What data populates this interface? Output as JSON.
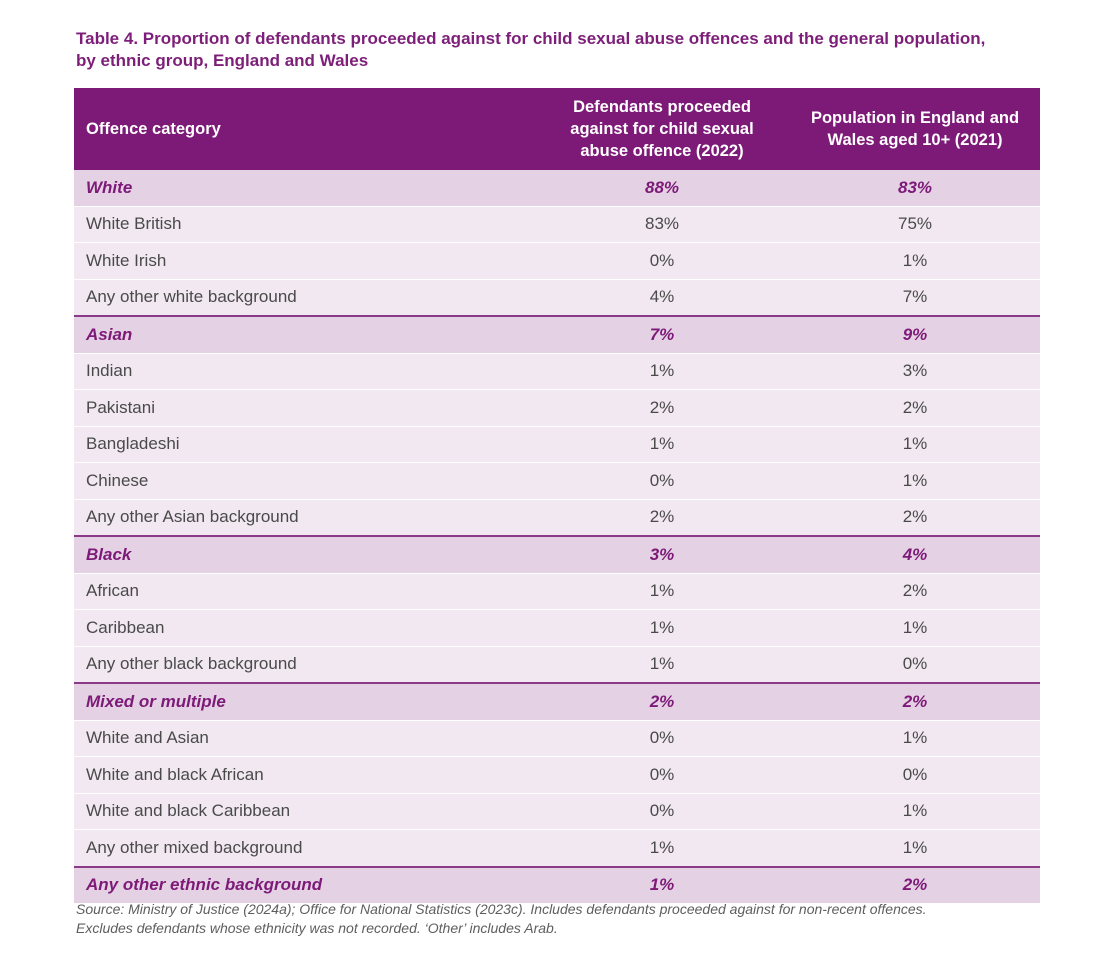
{
  "title": {
    "line1": "Table 4. Proportion of defendants proceeded against for child sexual abuse offences and the general population,",
    "line2": "by ethnic group, England and Wales"
  },
  "table": {
    "headers": {
      "col1": "Offence category",
      "col2_lines": [
        "Defendants proceeded",
        "against for child sexual",
        "abuse offence (2022)"
      ],
      "col3_lines": [
        "Population in England and",
        "Wales aged 10+ (2021)"
      ]
    },
    "rows": [
      {
        "label": "White",
        "defendants": "88%",
        "population": "83%",
        "group": true
      },
      {
        "label": "White British",
        "defendants": "83%",
        "population": "75%",
        "group": false
      },
      {
        "label": "White Irish",
        "defendants": "0%",
        "population": "1%",
        "group": false
      },
      {
        "label": "Any other white background",
        "defendants": "4%",
        "population": "7%",
        "group": false
      },
      {
        "label": "Asian",
        "defendants": "7%",
        "population": "9%",
        "group": true
      },
      {
        "label": "Indian",
        "defendants": "1%",
        "population": "3%",
        "group": false
      },
      {
        "label": "Pakistani",
        "defendants": "2%",
        "population": "2%",
        "group": false
      },
      {
        "label": "Bangladeshi",
        "defendants": "1%",
        "population": "1%",
        "group": false
      },
      {
        "label": "Chinese",
        "defendants": "0%",
        "population": "1%",
        "group": false
      },
      {
        "label": "Any other Asian background",
        "defendants": "2%",
        "population": "2%",
        "group": false
      },
      {
        "label": "Black",
        "defendants": "3%",
        "population": "4%",
        "group": true
      },
      {
        "label": "African",
        "defendants": "1%",
        "population": "2%",
        "group": false
      },
      {
        "label": "Caribbean",
        "defendants": "1%",
        "population": "1%",
        "group": false
      },
      {
        "label": "Any other black background",
        "defendants": "1%",
        "population": "0%",
        "group": false
      },
      {
        "label": "Mixed or multiple",
        "defendants": "2%",
        "population": "2%",
        "group": true
      },
      {
        "label": "White and Asian",
        "defendants": "0%",
        "population": "1%",
        "group": false
      },
      {
        "label": "White and black African",
        "defendants": "0%",
        "population": "0%",
        "group": false
      },
      {
        "label": "White and black Caribbean",
        "defendants": "0%",
        "population": "1%",
        "group": false
      },
      {
        "label": "Any other mixed background",
        "defendants": "1%",
        "population": "1%",
        "group": false
      },
      {
        "label": "Any other ethnic background",
        "defendants": "1%",
        "population": "2%",
        "group": true
      }
    ]
  },
  "note": {
    "line1": "Source: Ministry of Justice (2024a); Office for National Statistics (2023c). Includes defendants proceeded against for non-recent offences.",
    "line2": "Excludes defendants whose ethnicity was not recorded. ‘Other’ includes Arab."
  },
  "colors": {
    "accent": "#7d1a78",
    "group_row": "#e4d2e4",
    "sub_row": "#f1e8f1"
  }
}
